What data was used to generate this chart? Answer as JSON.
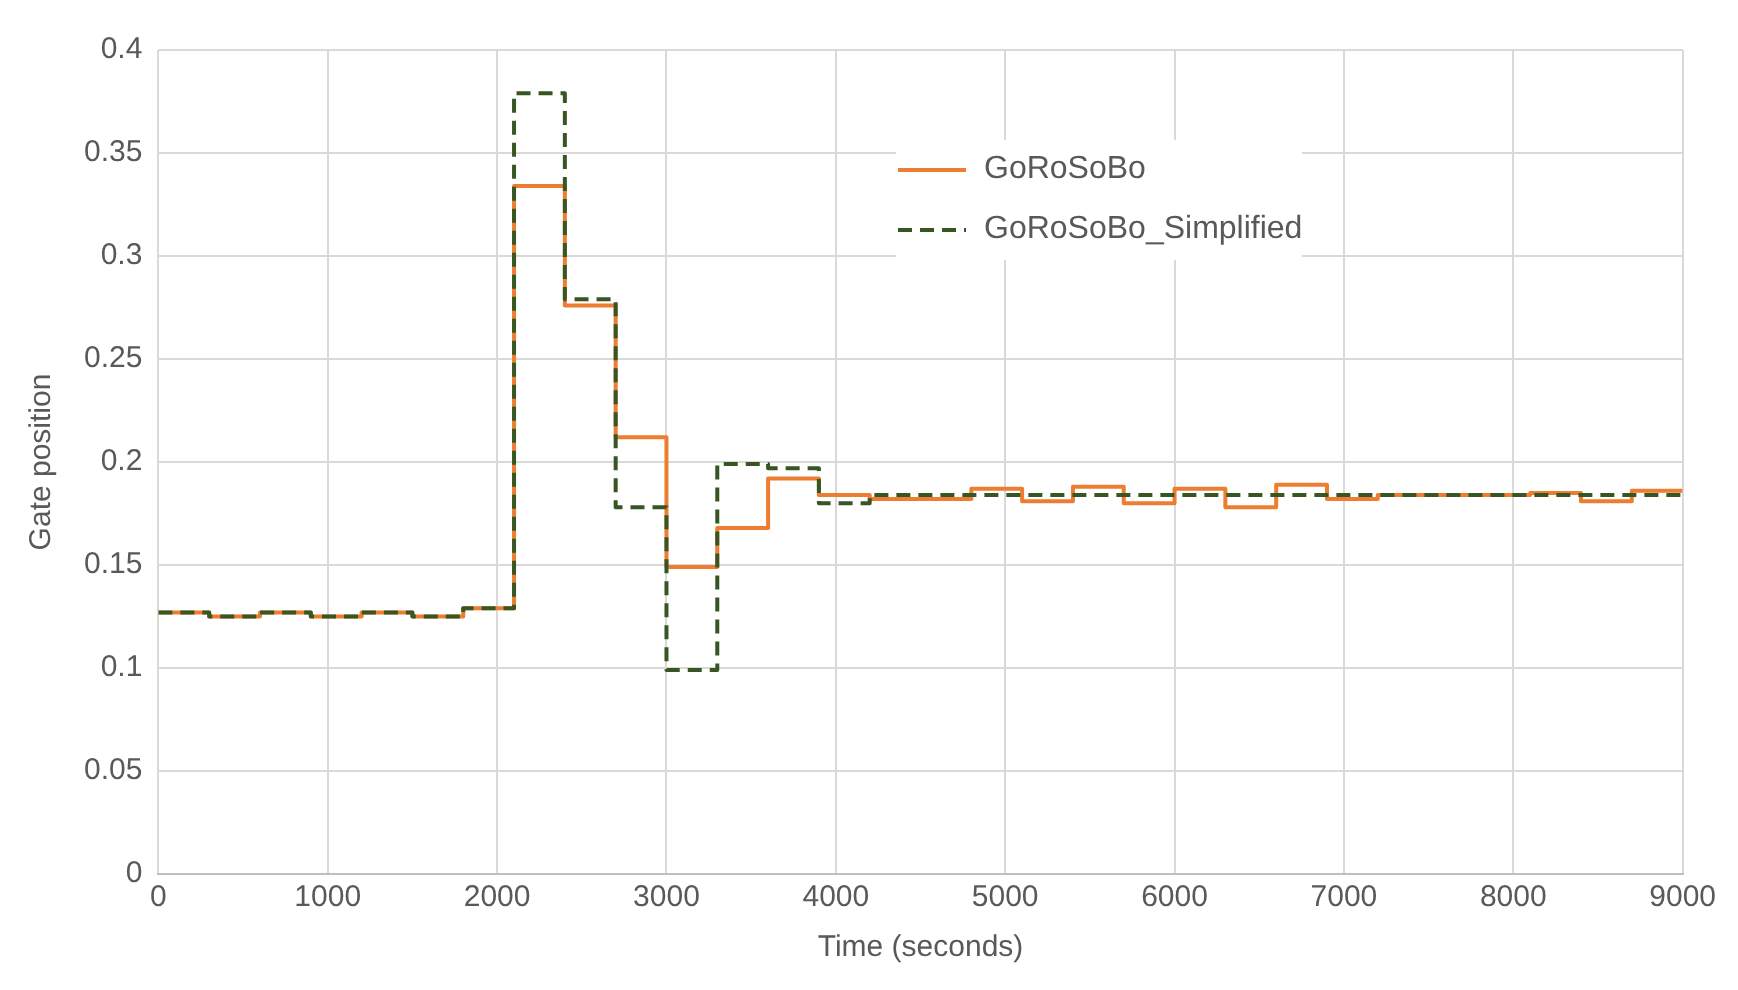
{
  "chart_data": {
    "type": "step",
    "xlabel": "Time (seconds)",
    "ylabel": "Gate position",
    "x": [
      0,
      300,
      600,
      900,
      1200,
      1500,
      1800,
      2100,
      2400,
      2700,
      3000,
      3300,
      3600,
      3900,
      4200,
      4500,
      4800,
      5100,
      5400,
      5700,
      6000,
      6300,
      6600,
      6900,
      7200,
      7500,
      7800,
      8100,
      8400,
      8700,
      9000
    ],
    "series": [
      {
        "name": "GoRoSoBo",
        "color": "#ed7d31",
        "line_style": "solid",
        "values": [
          0.127,
          0.125,
          0.127,
          0.125,
          0.127,
          0.125,
          0.129,
          0.334,
          0.276,
          0.212,
          0.149,
          0.168,
          0.192,
          0.184,
          0.182,
          0.182,
          0.187,
          0.181,
          0.188,
          0.18,
          0.187,
          0.178,
          0.189,
          0.182,
          0.184,
          0.184,
          0.184,
          0.185,
          0.181,
          0.186,
          0.186
        ]
      },
      {
        "name": "GoRoSoBo_Simplified",
        "color": "#375623",
        "line_style": "dashed",
        "values": [
          0.127,
          0.125,
          0.127,
          0.125,
          0.127,
          0.125,
          0.129,
          0.379,
          0.279,
          0.178,
          0.099,
          0.199,
          0.197,
          0.18,
          0.184,
          0.184,
          0.184,
          0.184,
          0.184,
          0.184,
          0.184,
          0.184,
          0.184,
          0.184,
          0.184,
          0.184,
          0.184,
          0.184,
          0.184,
          0.184,
          0.184
        ]
      }
    ],
    "xlim": [
      0,
      9000
    ],
    "xticks": [
      0,
      1000,
      2000,
      3000,
      4000,
      5000,
      6000,
      7000,
      8000,
      9000
    ],
    "ylim": [
      0,
      0.4
    ],
    "yticks": [
      0,
      0.05,
      0.1,
      0.15,
      0.2,
      0.25,
      0.3,
      0.35,
      0.4
    ],
    "grid": true,
    "legend": "top",
    "marker": "none"
  }
}
